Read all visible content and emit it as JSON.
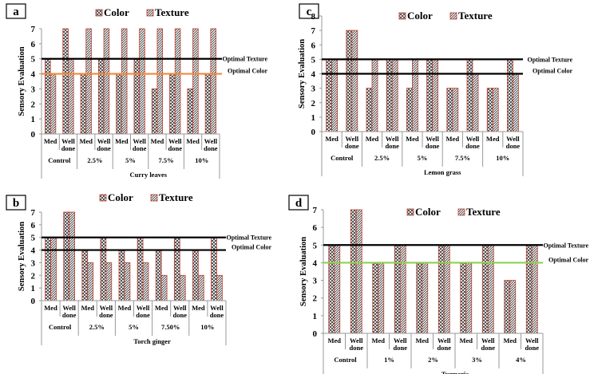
{
  "chart_data": [
    {
      "panel": "a",
      "type": "bar",
      "xlabel": "Curry leaves",
      "ylabel": "Sensory Evaluation",
      "ylim": [
        0,
        7
      ],
      "yticks": [
        0,
        1,
        2,
        3,
        4,
        5,
        6,
        7
      ],
      "groups": [
        "Control",
        "2.5%",
        "5%",
        "7.5%",
        "10%"
      ],
      "subcategories": [
        "Med",
        "Well done"
      ],
      "legend": [
        "Color",
        "Texture"
      ],
      "series": [
        {
          "name": "Color",
          "values": [
            5,
            7,
            4,
            5,
            4,
            5,
            3,
            4,
            3,
            4
          ]
        },
        {
          "name": "Texture",
          "values": [
            4,
            5,
            7,
            7,
            7,
            7,
            7,
            7,
            7,
            7
          ]
        }
      ],
      "reference_lines": [
        {
          "label": "Optimal Texture",
          "value": 5,
          "color": "#000000"
        },
        {
          "label": "Optimal Color",
          "value": 4,
          "color": "#f08a3c"
        }
      ]
    },
    {
      "panel": "c",
      "type": "bar",
      "xlabel": "Lemon grass",
      "ylabel": "Sensory Evaluation",
      "ylim": [
        0,
        8
      ],
      "yticks": [
        0,
        1,
        2,
        3,
        4,
        5,
        6,
        7,
        8
      ],
      "groups": [
        "Control",
        "2.5%",
        "5%",
        "7.5%",
        "10%"
      ],
      "subcategories": [
        "Med",
        "Well done"
      ],
      "legend": [
        "Color",
        "Texture"
      ],
      "series": [
        {
          "name": "Color",
          "values": [
            5,
            7,
            3,
            5,
            3,
            5,
            3,
            5,
            3,
            5
          ]
        },
        {
          "name": "Texture",
          "values": [
            5,
            7,
            5,
            5,
            5,
            5,
            3,
            4,
            3,
            4
          ]
        }
      ],
      "reference_lines": [
        {
          "label": "Optimal Texture",
          "value": 5,
          "color": "#000000"
        },
        {
          "label": "Optimal Color",
          "value": 4,
          "color": "#000000"
        }
      ]
    },
    {
      "panel": "b",
      "type": "bar",
      "xlabel": "Torch ginger",
      "ylabel": "Sensory Evaluation",
      "ylim": [
        0,
        7
      ],
      "yticks": [
        0,
        1,
        2,
        3,
        4,
        5,
        6,
        7
      ],
      "groups": [
        "Control",
        "2.5%",
        "5%",
        "7.50%",
        "10%"
      ],
      "subcategories": [
        "Med",
        "Well done"
      ],
      "legend": [
        "Color",
        "Texture"
      ],
      "series": [
        {
          "name": "Color",
          "values": [
            5,
            7,
            4,
            5,
            4,
            5,
            4,
            5,
            4,
            5
          ]
        },
        {
          "name": "Texture",
          "values": [
            5,
            7,
            3,
            3,
            3,
            3,
            2,
            2,
            2,
            2
          ]
        }
      ],
      "reference_lines": [
        {
          "label": "Optimal Texture",
          "value": 5,
          "color": "#000000"
        },
        {
          "label": "Optimal Color",
          "value": 4,
          "color": "#000000"
        }
      ]
    },
    {
      "panel": "d",
      "type": "bar",
      "xlabel": "Turmeric",
      "ylabel": "Sensory Evaluation",
      "ylim": [
        0,
        7
      ],
      "yticks": [
        0,
        1,
        2,
        3,
        4,
        5,
        6,
        7
      ],
      "groups": [
        "Control",
        "1%",
        "2%",
        "3%",
        "4%"
      ],
      "subcategories": [
        "Med",
        "Well done"
      ],
      "legend": [
        "Color",
        "Texture"
      ],
      "series": [
        {
          "name": "Color",
          "values": [
            5,
            7,
            4,
            5,
            4,
            5,
            4,
            5,
            3,
            5
          ]
        },
        {
          "name": "Texture",
          "values": [
            5,
            7,
            4,
            5,
            4,
            5,
            4,
            5,
            3,
            5
          ]
        }
      ],
      "reference_lines": [
        {
          "label": "Optimal Texture",
          "value": 5,
          "color": "#000000"
        },
        {
          "label": "Optimal Color",
          "value": 4,
          "color": "#8fd14f"
        }
      ]
    }
  ],
  "colors": {
    "bar_edge": "#c0392b",
    "bar_fill": "#f6d3d3",
    "axis": "#999999"
  }
}
